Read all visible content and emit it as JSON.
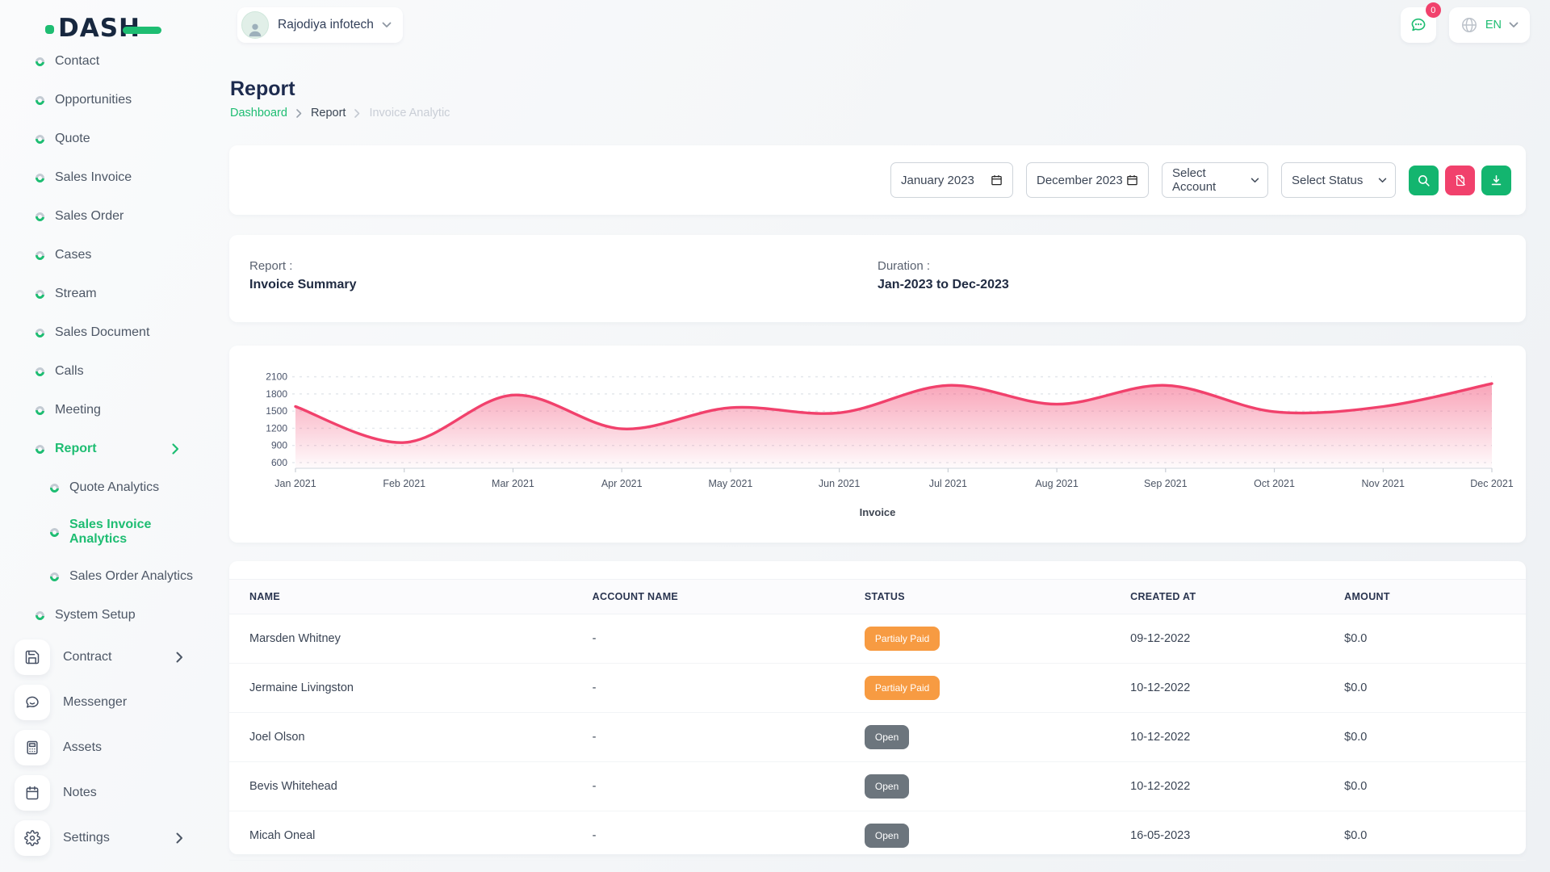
{
  "colors": {
    "accent_green": "#1ebd72",
    "button_green": "#13b56f",
    "pink": "#f1416c",
    "badge_orange": "#f79b42",
    "badge_gray": "#6c757d",
    "navy": "#1d2b4e"
  },
  "sidebar": {
    "logo_text": "DASH",
    "items": [
      {
        "label": "Contact",
        "icon": "donut"
      },
      {
        "label": "Opportunities",
        "icon": "donut"
      },
      {
        "label": "Quote",
        "icon": "donut"
      },
      {
        "label": "Sales Invoice",
        "icon": "donut"
      },
      {
        "label": "Sales Order",
        "icon": "donut"
      },
      {
        "label": "Cases",
        "icon": "donut"
      },
      {
        "label": "Stream",
        "icon": "donut"
      },
      {
        "label": "Sales Document",
        "icon": "donut"
      },
      {
        "label": "Calls",
        "icon": "donut"
      },
      {
        "label": "Meeting",
        "icon": "donut"
      },
      {
        "label": "Report",
        "icon": "donut",
        "active": true,
        "chevron": true
      },
      {
        "label": "Quote Analytics",
        "icon": "donut",
        "sub": true
      },
      {
        "label": "Sales Invoice Analytics",
        "icon": "donut",
        "sub": true,
        "active": true
      },
      {
        "label": "Sales Order Analytics",
        "icon": "donut",
        "sub": true
      },
      {
        "label": "System Setup",
        "icon": "donut"
      },
      {
        "label": "Contract",
        "icon": "floppy-disk",
        "chevron": true
      },
      {
        "label": "Messenger",
        "icon": "chat-bubble"
      },
      {
        "label": "Assets",
        "icon": "calculator"
      },
      {
        "label": "Notes",
        "icon": "calendar"
      },
      {
        "label": "Settings",
        "icon": "gear",
        "chevron": true
      }
    ]
  },
  "header": {
    "company": "Rajodiya infotech",
    "notification_count": "0",
    "language": "EN"
  },
  "page": {
    "title": "Report",
    "breadcrumb": [
      "Dashboard",
      "Report",
      "Invoice Analytic"
    ]
  },
  "filters": {
    "start_date": "January 2023",
    "end_date": "December 2023",
    "account_placeholder": "Select Account",
    "status_placeholder": "Select Status"
  },
  "summary": {
    "report_label": "Report :",
    "report_value": "Invoice Summary",
    "duration_label": "Duration :",
    "duration_value": "Jan-2023 to Dec-2023"
  },
  "chart_data": {
    "type": "area",
    "title": "",
    "xlabel": "",
    "ylabel": "",
    "categories": [
      "Jan 2021",
      "Feb 2021",
      "Mar 2021",
      "Apr 2021",
      "May 2021",
      "Jun 2021",
      "Jul 2021",
      "Aug 2021",
      "Sep 2021",
      "Oct 2021",
      "Nov 2021",
      "Dec 2021"
    ],
    "series": [
      {
        "name": "Invoice",
        "values": [
          1580,
          950,
          1780,
          1190,
          1560,
          1470,
          1950,
          1620,
          1950,
          1490,
          1580,
          1980
        ]
      }
    ],
    "yticks": [
      600,
      900,
      1200,
      1500,
      1800,
      2100
    ],
    "ylim": [
      500,
      2250
    ],
    "grid": "dashed-horizontal",
    "legend": "Invoice",
    "legend_position": "bottom",
    "line_color": "#f1416c",
    "fill_top": "rgba(241,65,108,0.48)",
    "fill_bottom": "rgba(241,65,108,0.02)"
  },
  "table": {
    "columns": [
      "NAME",
      "ACCOUNT NAME",
      "STATUS",
      "CREATED AT",
      "AMOUNT"
    ],
    "rows": [
      {
        "name": "Marsden Whitney",
        "account": "-",
        "status": "Partialy Paid",
        "created": "09-12-2022",
        "amount": "$0.0"
      },
      {
        "name": "Jermaine Livingston",
        "account": "-",
        "status": "Partialy Paid",
        "created": "10-12-2022",
        "amount": "$0.0"
      },
      {
        "name": "Joel Olson",
        "account": "-",
        "status": "Open",
        "created": "10-12-2022",
        "amount": "$0.0"
      },
      {
        "name": "Bevis Whitehead",
        "account": "-",
        "status": "Open",
        "created": "10-12-2022",
        "amount": "$0.0"
      },
      {
        "name": "Micah Oneal",
        "account": "-",
        "status": "Open",
        "created": "16-05-2023",
        "amount": "$0.0"
      }
    ]
  }
}
